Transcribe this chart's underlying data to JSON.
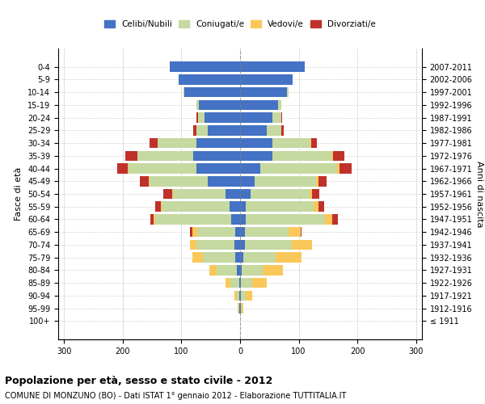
{
  "age_groups": [
    "100+",
    "95-99",
    "90-94",
    "85-89",
    "80-84",
    "75-79",
    "70-74",
    "65-69",
    "60-64",
    "55-59",
    "50-54",
    "45-49",
    "40-44",
    "35-39",
    "30-34",
    "25-29",
    "20-24",
    "15-19",
    "10-14",
    "5-9",
    "0-4"
  ],
  "birth_years": [
    "≤ 1911",
    "1912-1916",
    "1917-1921",
    "1922-1926",
    "1927-1931",
    "1932-1936",
    "1937-1941",
    "1942-1946",
    "1947-1951",
    "1952-1956",
    "1957-1961",
    "1962-1966",
    "1967-1971",
    "1972-1976",
    "1977-1981",
    "1982-1986",
    "1987-1991",
    "1992-1996",
    "1997-2001",
    "2002-2006",
    "2007-2011"
  ],
  "males": {
    "celibi": [
      0,
      1,
      1,
      2,
      5,
      8,
      10,
      8,
      15,
      18,
      25,
      55,
      75,
      80,
      75,
      55,
      60,
      70,
      95,
      105,
      120
    ],
    "coniugati": [
      0,
      2,
      5,
      15,
      35,
      55,
      65,
      65,
      130,
      115,
      90,
      100,
      115,
      95,
      65,
      20,
      12,
      5,
      2,
      0,
      0
    ],
    "vedovi": [
      0,
      1,
      3,
      8,
      12,
      18,
      10,
      8,
      3,
      2,
      1,
      1,
      2,
      0,
      0,
      0,
      0,
      0,
      0,
      0,
      0
    ],
    "divorziati": [
      0,
      0,
      0,
      0,
      0,
      0,
      0,
      5,
      5,
      10,
      15,
      15,
      18,
      20,
      15,
      5,
      2,
      0,
      0,
      0,
      0
    ]
  },
  "females": {
    "nubili": [
      0,
      1,
      1,
      2,
      3,
      5,
      8,
      8,
      10,
      10,
      18,
      25,
      35,
      55,
      55,
      45,
      55,
      65,
      80,
      90,
      110
    ],
    "coniugate": [
      0,
      2,
      8,
      18,
      35,
      55,
      80,
      75,
      135,
      115,
      100,
      105,
      130,
      100,
      65,
      25,
      15,
      5,
      2,
      0,
      0
    ],
    "vedove": [
      0,
      3,
      12,
      25,
      35,
      45,
      35,
      20,
      12,
      8,
      5,
      3,
      5,
      3,
      1,
      0,
      0,
      0,
      0,
      0,
      0
    ],
    "divorziate": [
      0,
      0,
      0,
      0,
      0,
      0,
      0,
      2,
      10,
      10,
      12,
      15,
      20,
      20,
      10,
      5,
      2,
      0,
      0,
      0,
      0
    ]
  },
  "colors": {
    "celibi": "#4472C4",
    "coniugati": "#C5D9A0",
    "vedovi": "#FAC85A",
    "divorziati": "#C0312B"
  },
  "xlim": 310,
  "title": "Popolazione per età, sesso e stato civile - 2012",
  "subtitle": "COMUNE DI MONZUNO (BO) - Dati ISTAT 1° gennaio 2012 - Elaborazione TUTTITALIA.IT",
  "ylabel": "Fasce di età",
  "right_label": "Anni di nascita"
}
